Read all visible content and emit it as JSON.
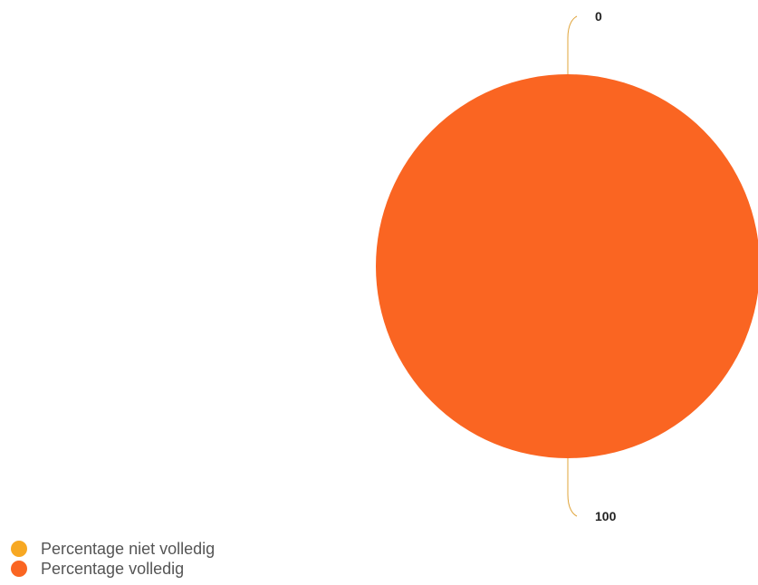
{
  "chart_data": {
    "type": "pie",
    "categories": [
      "Percentage niet volledig",
      "Percentage volledig"
    ],
    "values": [
      0,
      100
    ],
    "data_labels": [
      "0",
      "100"
    ],
    "colors": [
      "#F7A823",
      "#FA6522"
    ],
    "connector_color": "#E0A43A",
    "legend_position": "bottom-left"
  },
  "legend": {
    "items": [
      {
        "label": "Percentage niet volledig",
        "color": "#F7A823"
      },
      {
        "label": "Percentage volledig",
        "color": "#FA6522"
      }
    ]
  }
}
